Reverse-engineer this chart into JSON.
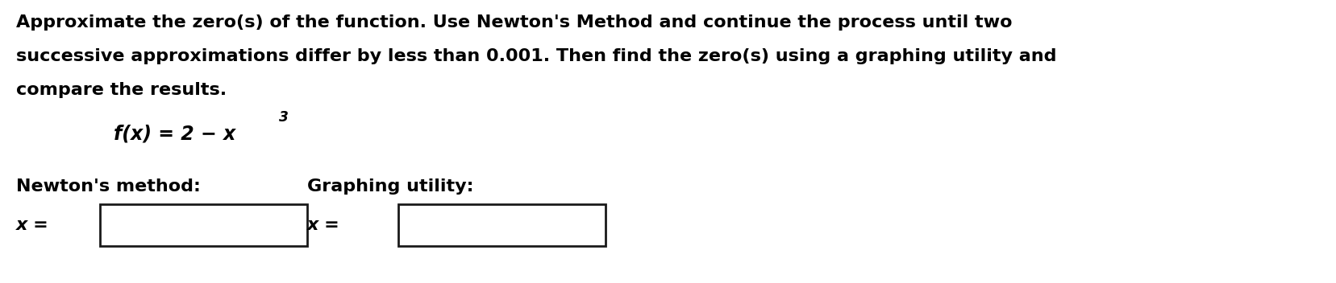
{
  "background_color": "#ffffff",
  "line1": "Approximate the zero(s) of the function. Use Newton's Method and continue the process until two",
  "line2": "successive approximations differ by less than 0.001. Then find the zero(s) using a graphing utility and",
  "line3": "compare the results.",
  "formula_base": "f(x) = 2 − x",
  "formula_sup": "3",
  "newton_label": "Newton's method:",
  "graphing_label": "Graphing utility:",
  "x_eq": "x =",
  "text_color": "#000000",
  "box_edge_color": "#1a1a1a",
  "box_face_color": "#ffffff",
  "para_fontsize": 16,
  "formula_fontsize": 17,
  "label_fontsize": 16,
  "fig_width": 16.57,
  "fig_height": 3.52,
  "dpi": 100
}
